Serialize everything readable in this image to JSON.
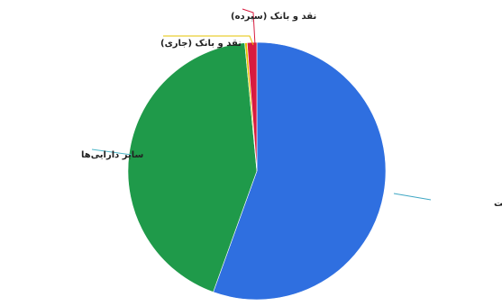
{
  "chart_data": {
    "type": "pie",
    "title": "",
    "slices": [
      {
        "label": "اوراق مشارکت",
        "value": 55.5,
        "color": "#2f6fe0"
      },
      {
        "label": "سایر دارایی‌ها",
        "value": 43.0,
        "color": "#1f9a4a"
      },
      {
        "label": "نقد و بانک (جاری)",
        "value": 0.3,
        "color": "#e6c300"
      },
      {
        "label": "نقد و بانک (سپرده)",
        "value": 1.2,
        "color": "#d81b3f"
      }
    ],
    "legend": "none",
    "label_placement": "outside-with-leader-lines"
  }
}
